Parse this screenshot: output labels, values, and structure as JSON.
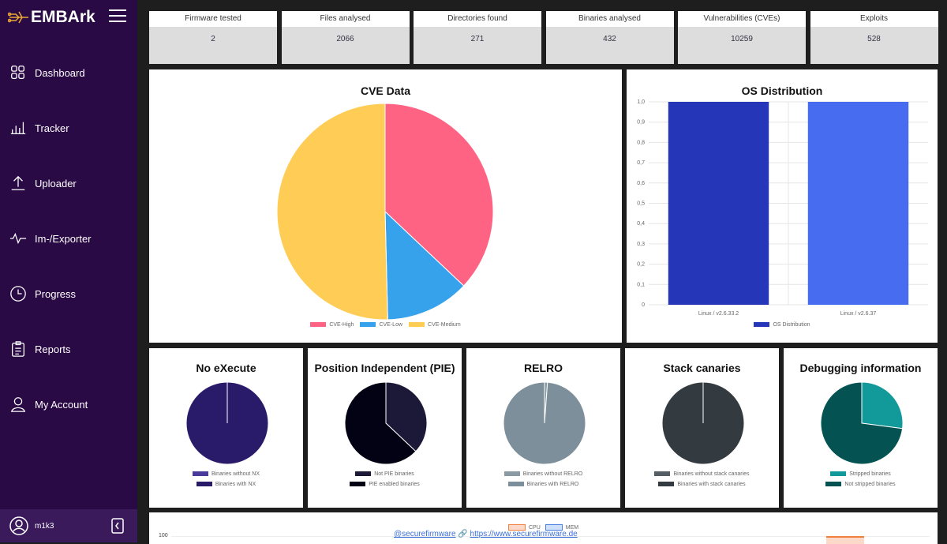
{
  "sidebar": {
    "brand": "EMBArk",
    "items": [
      {
        "label": "Dashboard",
        "icon": "grid-icon"
      },
      {
        "label": "Tracker",
        "icon": "bar-chart-icon"
      },
      {
        "label": "Uploader",
        "icon": "upload-icon"
      },
      {
        "label": "Im-/Exporter",
        "icon": "activity-icon"
      },
      {
        "label": "Progress",
        "icon": "clock-icon"
      },
      {
        "label": "Reports",
        "icon": "clipboard-icon"
      },
      {
        "label": "My Account",
        "icon": "user-icon"
      }
    ],
    "user": "m1k3"
  },
  "stats": [
    {
      "label": "Firmware tested",
      "value": "2"
    },
    {
      "label": "Files analysed",
      "value": "2066"
    },
    {
      "label": "Directories found",
      "value": "271"
    },
    {
      "label": "Binaries analysed",
      "value": "432"
    },
    {
      "label": "Vulnerabilities (CVEs)",
      "value": "10259"
    },
    {
      "label": "Exploits",
      "value": "528"
    }
  ],
  "footer": {
    "twitter": "@securefirmware",
    "website": "https://www.securefirmware.de",
    "cpu_label": "CPU",
    "mem_label": "MEM",
    "y_tick": "100"
  },
  "chart_data": [
    {
      "type": "pie",
      "title": "CVE Data",
      "labels": [
        "CVE-High",
        "CVE-Low",
        "CVE-Medium"
      ],
      "values": [
        3800,
        1290,
        5169
      ],
      "colors": [
        "#ff6384",
        "#36a2eb",
        "#ffcd56"
      ]
    },
    {
      "type": "bar",
      "title": "OS Distribution",
      "categories": [
        "Linux / v2.6.33.2",
        "Linux / v2.6.37"
      ],
      "values": [
        1,
        1
      ],
      "colors": [
        "#2636b8",
        "#476cf0"
      ],
      "series_name": "OS Distribution",
      "ylim": [
        0,
        1
      ],
      "yticks": [
        "0",
        "0,1",
        "0,2",
        "0,3",
        "0,4",
        "0,5",
        "0,6",
        "0,7",
        "0,8",
        "0,9",
        "1,0"
      ],
      "grid": true,
      "legend": "bottom"
    },
    {
      "type": "pie",
      "title": "No eXecute",
      "labels": [
        "Binaries without NX",
        "Binaries with NX"
      ],
      "values": [
        0,
        432
      ],
      "colors": [
        "#4b3a9a",
        "#2a1a6a"
      ]
    },
    {
      "type": "pie",
      "title": "Position Independent (PIE)",
      "labels": [
        "Not PIE binaries",
        "PIE enabled binaries"
      ],
      "values": [
        160,
        272
      ],
      "colors": [
        "#1c1838",
        "#020214"
      ]
    },
    {
      "type": "pie",
      "title": "RELRO",
      "labels": [
        "Binaries without RELRO",
        "Binaries with RELRO"
      ],
      "values": [
        5,
        427
      ],
      "colors": [
        "#8a9aa4",
        "#7d8f9a"
      ]
    },
    {
      "type": "pie",
      "title": "Stack canaries",
      "labels": [
        "Binaries without stack canaries",
        "Binaries with stack canaries"
      ],
      "values": [
        0,
        432
      ],
      "colors": [
        "#555d64",
        "#343b40"
      ]
    },
    {
      "type": "pie",
      "title": "Debugging information",
      "labels": [
        "Stripped binaries",
        "Not stripped binaries"
      ],
      "values": [
        117,
        315
      ],
      "colors": [
        "#12999a",
        "#045252"
      ]
    }
  ]
}
